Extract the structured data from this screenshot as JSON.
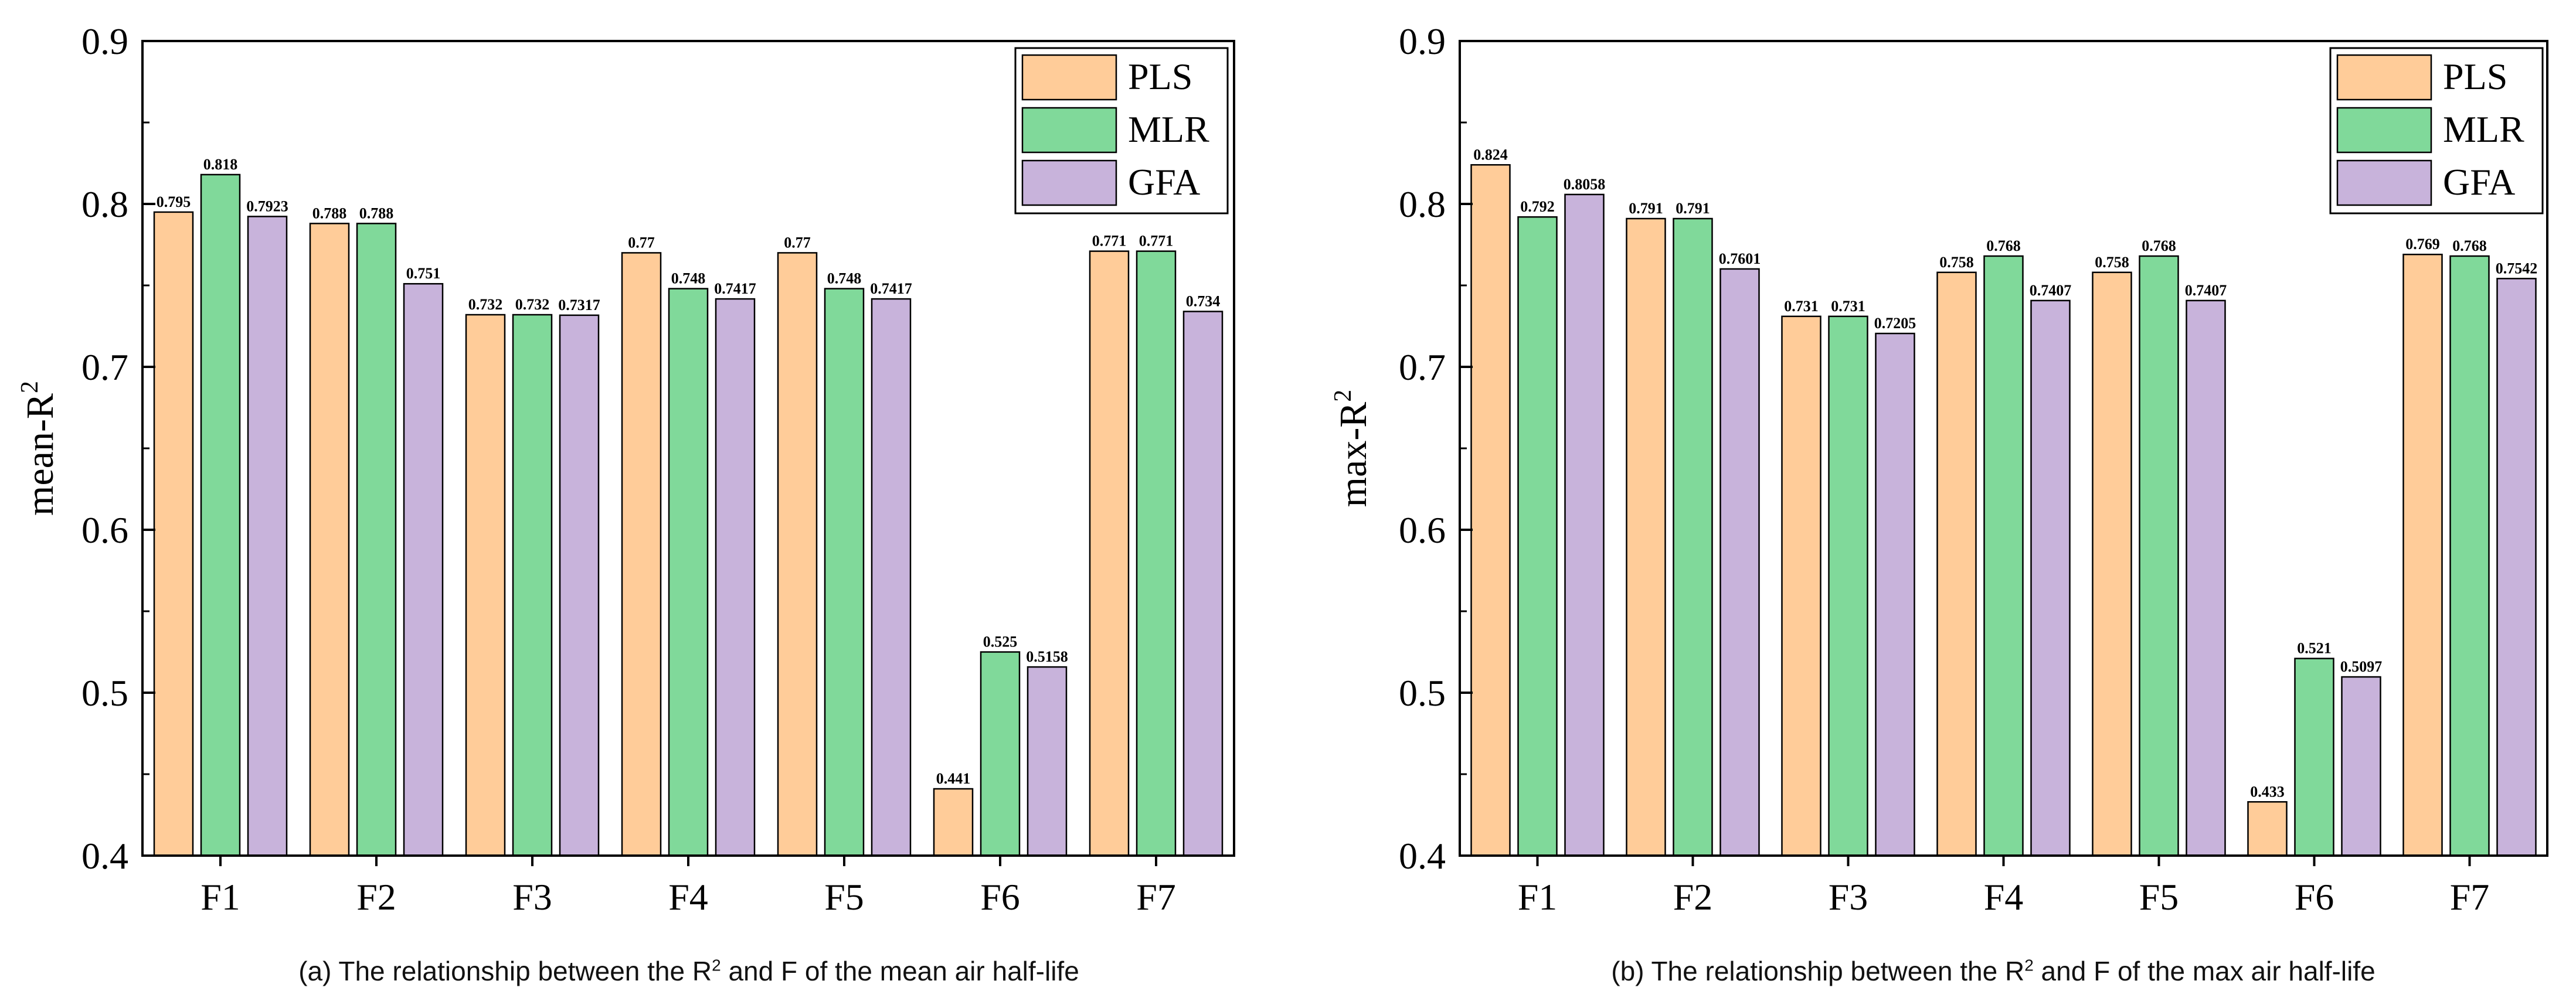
{
  "colors": {
    "PLS": "#FFCC99",
    "MLR": "#80D99A",
    "GFA": "#C8B3DB",
    "axis": "#000000"
  },
  "chart_data": [
    {
      "type": "bar",
      "panel": "a",
      "ylabel_main": "mean-R",
      "ylabel_sup": "2",
      "xlabel": "",
      "ylim": [
        0.4,
        0.9
      ],
      "yticks": [
        "0.4",
        "0.5",
        "0.6",
        "0.7",
        "0.8",
        "0.9"
      ],
      "categories": [
        "F1",
        "F2",
        "F3",
        "F4",
        "F5",
        "F6",
        "F7"
      ],
      "legend_position": "top-right",
      "series": [
        {
          "name": "PLS",
          "values": [
            0.795,
            0.788,
            0.732,
            0.77,
            0.77,
            0.441,
            0.771
          ],
          "labels": [
            "0.795",
            "0.788",
            "0.732",
            "0.77",
            "0.77",
            "0.441",
            "0.771"
          ]
        },
        {
          "name": "MLR",
          "values": [
            0.818,
            0.788,
            0.732,
            0.748,
            0.748,
            0.525,
            0.771
          ],
          "labels": [
            "0.818",
            "0.788",
            "0.732",
            "0.748",
            "0.748",
            "0.525",
            "0.771"
          ]
        },
        {
          "name": "GFA",
          "values": [
            0.7923,
            0.751,
            0.7317,
            0.7417,
            0.7417,
            0.5158,
            0.734
          ],
          "labels": [
            "0.7923",
            "0.751",
            "0.7317",
            "0.7417",
            "0.7417",
            "0.5158",
            "0.734"
          ]
        }
      ],
      "caption": {
        "pre": "(a) The relationship between the R",
        "sup": "2",
        "post": " and F of the mean air half-life"
      }
    },
    {
      "type": "bar",
      "panel": "b",
      "ylabel_main": "max-R",
      "ylabel_sup": "2",
      "xlabel": "",
      "ylim": [
        0.4,
        0.9
      ],
      "yticks": [
        "0.4",
        "0.5",
        "0.6",
        "0.7",
        "0.8",
        "0.9"
      ],
      "categories": [
        "F1",
        "F2",
        "F3",
        "F4",
        "F5",
        "F6",
        "F7"
      ],
      "legend_position": "top-right",
      "series": [
        {
          "name": "PLS",
          "values": [
            0.824,
            0.791,
            0.731,
            0.758,
            0.758,
            0.433,
            0.769
          ],
          "labels": [
            "0.824",
            "0.791",
            "0.731",
            "0.758",
            "0.758",
            "0.433",
            "0.769"
          ]
        },
        {
          "name": "MLR",
          "values": [
            0.792,
            0.791,
            0.731,
            0.768,
            0.768,
            0.521,
            0.768
          ],
          "labels": [
            "0.792",
            "0.791",
            "0.731",
            "0.768",
            "0.768",
            "0.521",
            "0.768"
          ]
        },
        {
          "name": "GFA",
          "values": [
            0.8058,
            0.7601,
            0.7205,
            0.7407,
            0.7407,
            0.5097,
            0.7542
          ],
          "labels": [
            "0.8058",
            "0.7601",
            "0.7205",
            "0.7407",
            "0.7407",
            "0.5097",
            "0.7542"
          ]
        }
      ],
      "caption": {
        "pre": "(b) The relationship between the R",
        "sup": "2",
        "post": " and F of the max air half-life"
      }
    }
  ]
}
